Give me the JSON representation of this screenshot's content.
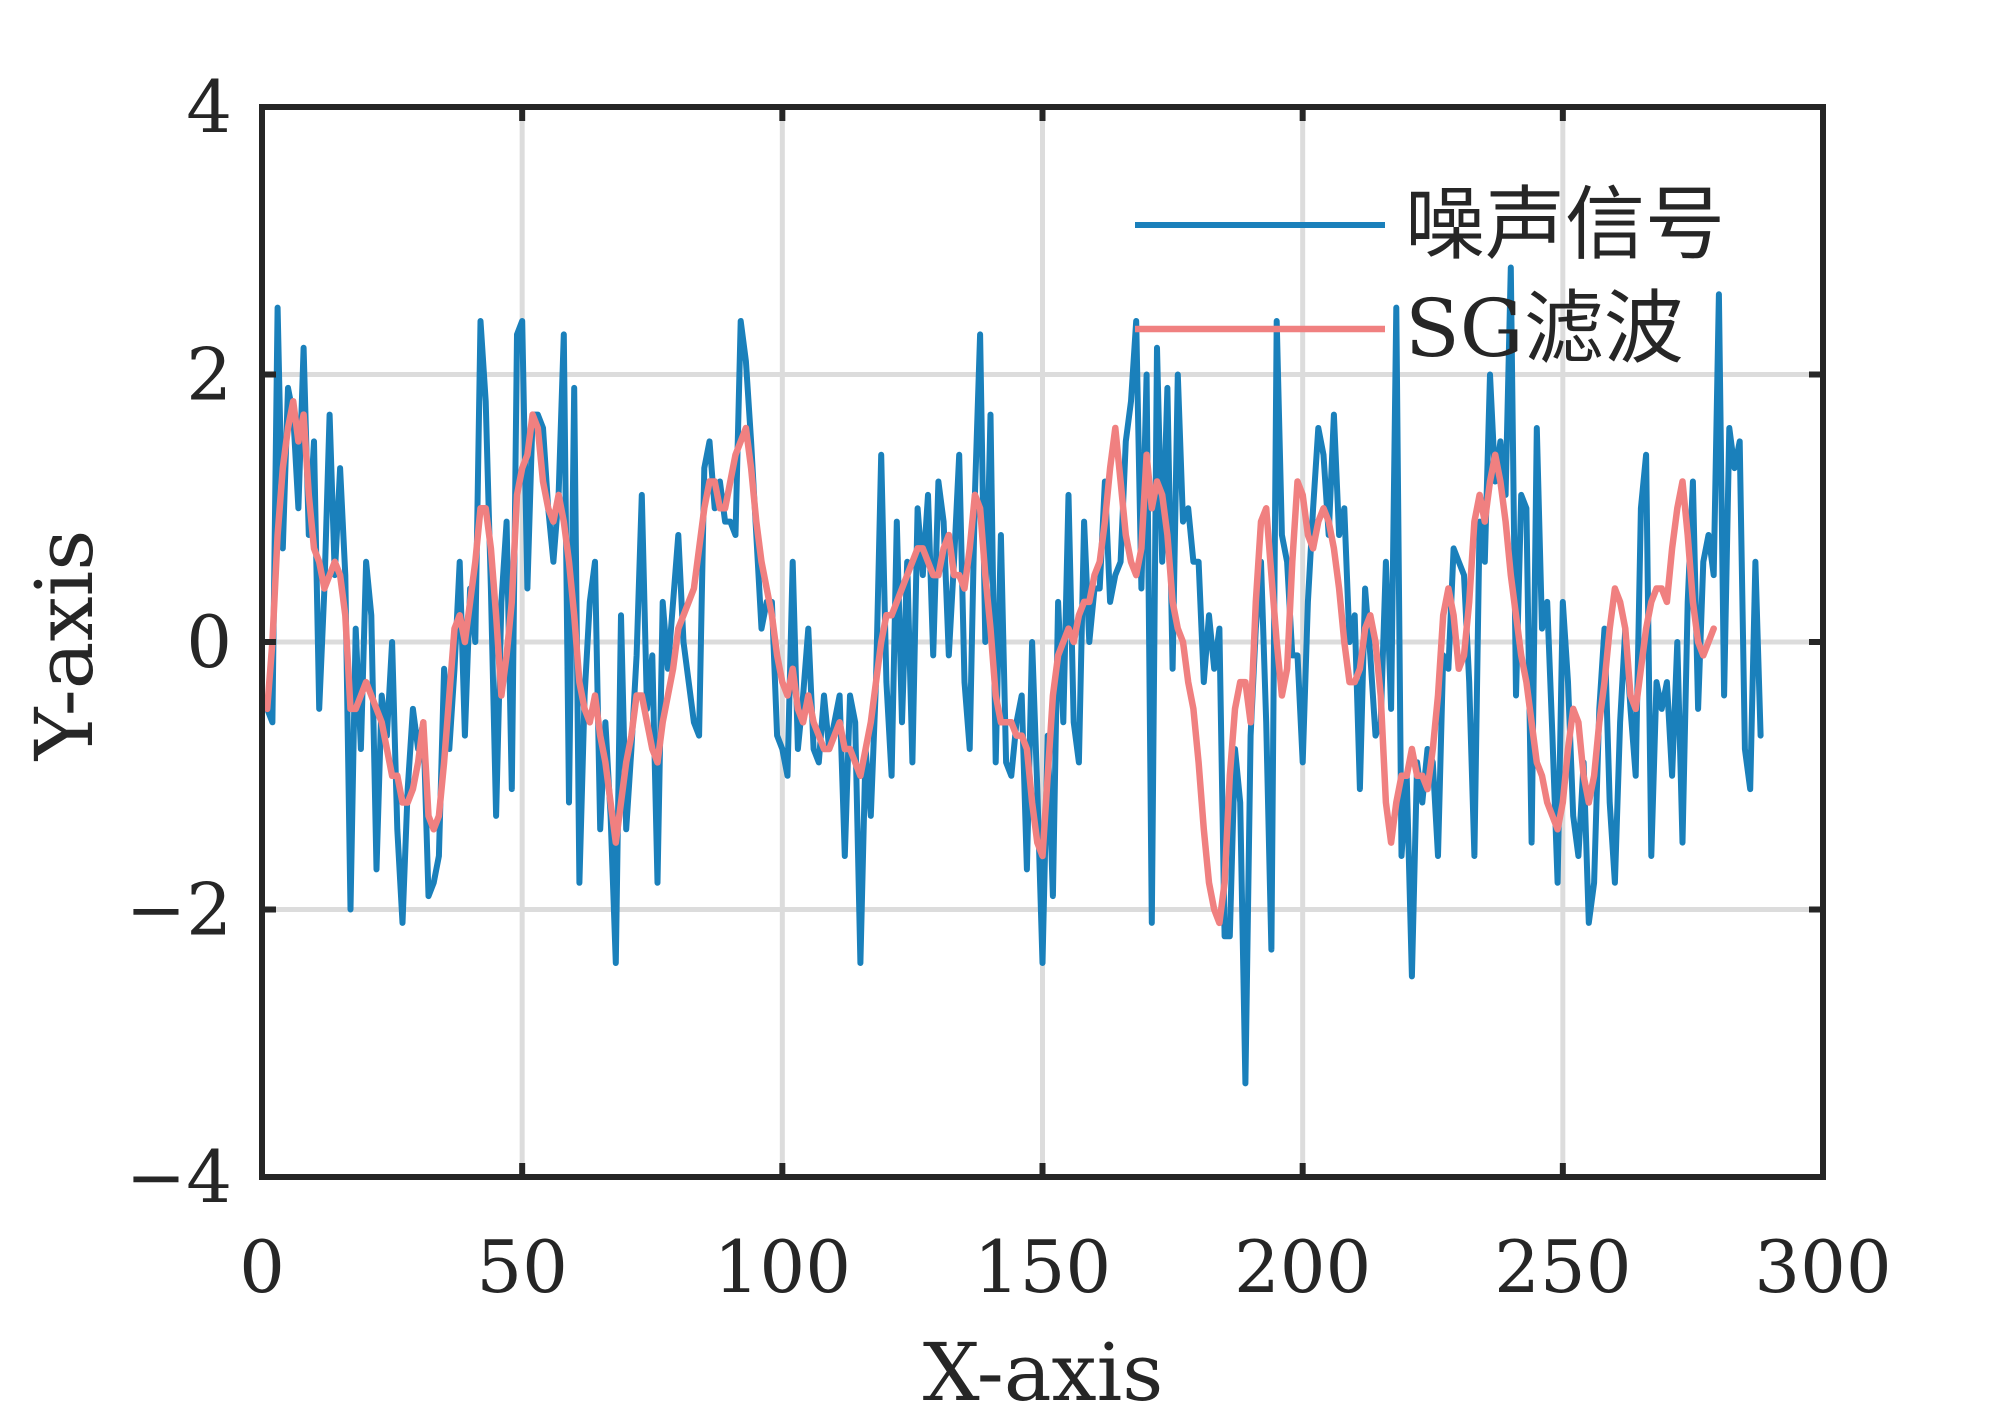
{
  "chart_data": {
    "type": "line",
    "xlabel": "X-axis",
    "ylabel": "Y-axis",
    "xlim": [
      0,
      300
    ],
    "ylim": [
      -4,
      4
    ],
    "xticks": [
      0,
      50,
      100,
      150,
      200,
      250,
      300
    ],
    "yticks": [
      -4,
      -2,
      0,
      2,
      4
    ],
    "xtick_labels": [
      "0",
      "50",
      "100",
      "150",
      "200",
      "250",
      "300"
    ],
    "ytick_labels": [
      "−4",
      "−2",
      "0",
      "2",
      "4"
    ],
    "grid": true,
    "legend_position": "top-right",
    "x_start": 1,
    "x_step": 1,
    "series": [
      {
        "name": "噪声信号",
        "color": "#1a80bb",
        "values": [
          -0.5,
          -0.6,
          2.5,
          0.7,
          1.9,
          1.7,
          1.0,
          2.2,
          0.8,
          1.5,
          -0.5,
          0.4,
          1.7,
          0.5,
          1.3,
          0.5,
          -2.0,
          0.1,
          -0.8,
          0.6,
          0.2,
          -1.7,
          -0.4,
          -0.7,
          0.0,
          -1.4,
          -2.1,
          -1.1,
          -0.5,
          -0.8,
          -0.6,
          -1.9,
          -1.8,
          -1.6,
          -0.2,
          -0.8,
          -0.2,
          0.6,
          -0.7,
          0.4,
          0.0,
          2.4,
          1.8,
          0.4,
          -1.3,
          0.3,
          0.9,
          -1.1,
          2.3,
          2.4,
          0.4,
          1.7,
          1.7,
          1.6,
          1.0,
          0.6,
          1.1,
          2.3,
          -1.2,
          1.9,
          -1.8,
          -0.4,
          0.3,
          0.6,
          -1.4,
          -0.6,
          -1.3,
          -2.4,
          0.2,
          -1.4,
          -0.8,
          -0.1,
          1.1,
          -0.5,
          -0.1,
          -1.8,
          0.3,
          -0.2,
          0.3,
          0.8,
          0.0,
          -0.3,
          -0.6,
          -0.7,
          1.3,
          1.5,
          1.0,
          1.2,
          0.9,
          0.9,
          0.8,
          2.4,
          2.1,
          1.5,
          0.8,
          0.1,
          0.3,
          0.3,
          -0.7,
          -0.8,
          -1.0,
          0.6,
          -0.8,
          -0.4,
          0.1,
          -0.8,
          -0.9,
          -0.4,
          -0.8,
          -0.6,
          -0.4,
          -1.6,
          -0.4,
          -0.6,
          -2.4,
          -0.8,
          -1.3,
          -0.3,
          1.4,
          -0.3,
          -1.0,
          0.9,
          -0.6,
          0.6,
          -0.9,
          1.0,
          0.5,
          1.1,
          -0.1,
          1.2,
          0.9,
          -0.1,
          0.6,
          1.4,
          -0.3,
          -0.8,
          1.1,
          2.3,
          0.0,
          1.7,
          -0.9,
          0.8,
          -0.9,
          -1.0,
          -0.6,
          -0.4,
          -1.7,
          0.0,
          -1.1,
          -2.4,
          -0.7,
          -1.9,
          0.3,
          -0.6,
          1.1,
          -0.6,
          -0.9,
          0.9,
          0.0,
          0.4,
          0.4,
          1.2,
          0.3,
          0.5,
          0.6,
          1.5,
          1.8,
          2.4,
          0.4,
          2.0,
          -2.1,
          2.2,
          0.6,
          1.9,
          -0.2,
          2.0,
          0.9,
          1.0,
          0.6,
          0.6,
          -0.3,
          0.2,
          -0.2,
          0.1,
          -2.2,
          -2.2,
          -0.8,
          -1.2,
          -3.3,
          -0.7,
          0.1,
          0.6,
          -0.6,
          -2.3,
          2.4,
          0.8,
          0.6,
          -0.1,
          -0.1,
          -0.9,
          0.3,
          1.0,
          1.6,
          1.4,
          0.8,
          1.7,
          0.8,
          1.0,
          0.0,
          0.2,
          -1.1,
          0.4,
          -0.1,
          -0.7,
          -0.6,
          0.6,
          -0.5,
          2.5,
          -1.6,
          -1.0,
          -2.5,
          -0.9,
          -1.2,
          -0.8,
          -0.9,
          -1.6,
          -0.1,
          -0.2,
          0.7,
          0.6,
          0.5,
          -0.3,
          -1.6,
          0.9,
          0.6,
          2.0,
          1.2,
          1.5,
          1.1,
          2.8,
          -0.4,
          1.1,
          1.0,
          -1.5,
          1.6,
          0.1,
          0.3,
          -0.7,
          -1.8,
          0.3,
          -0.3,
          -1.3,
          -1.6,
          -0.9,
          -2.1,
          -1.8,
          -0.5,
          0.1,
          -1.2,
          -1.8,
          -0.6,
          0.1,
          -0.5,
          -1.0,
          1.0,
          1.4,
          -1.6,
          -0.3,
          -0.5,
          -0.3,
          -1.0,
          0.0,
          -1.5,
          0.3,
          1.2,
          -0.5,
          0.6,
          0.8,
          0.5,
          2.6,
          -0.4,
          1.6,
          1.3,
          1.5,
          -0.8,
          -1.1,
          0.6,
          -0.7
        ]
      },
      {
        "name": "SG滤波",
        "color": "#f08080",
        "values": [
          -0.5,
          0.0,
          0.8,
          1.3,
          1.6,
          1.8,
          1.5,
          1.7,
          1.1,
          0.7,
          0.6,
          0.4,
          0.5,
          0.6,
          0.5,
          0.2,
          -0.5,
          -0.5,
          -0.4,
          -0.3,
          -0.4,
          -0.5,
          -0.6,
          -0.8,
          -1.0,
          -1.0,
          -1.2,
          -1.2,
          -1.1,
          -0.9,
          -0.6,
          -1.3,
          -1.4,
          -1.3,
          -0.9,
          -0.4,
          0.1,
          0.2,
          0.0,
          0.3,
          0.6,
          1.0,
          1.0,
          0.7,
          0.2,
          -0.4,
          -0.1,
          0.3,
          1.1,
          1.3,
          1.4,
          1.7,
          1.6,
          1.2,
          1.0,
          0.9,
          1.1,
          0.9,
          0.6,
          0.2,
          -0.3,
          -0.5,
          -0.6,
          -0.4,
          -0.7,
          -0.9,
          -1.2,
          -1.5,
          -1.2,
          -0.9,
          -0.7,
          -0.4,
          -0.4,
          -0.6,
          -0.8,
          -0.9,
          -0.6,
          -0.4,
          -0.2,
          0.1,
          0.2,
          0.3,
          0.4,
          0.7,
          1.0,
          1.2,
          1.2,
          1.0,
          1.0,
          1.2,
          1.4,
          1.5,
          1.6,
          1.3,
          0.9,
          0.6,
          0.4,
          0.2,
          -0.1,
          -0.3,
          -0.4,
          -0.2,
          -0.5,
          -0.6,
          -0.4,
          -0.6,
          -0.7,
          -0.8,
          -0.8,
          -0.7,
          -0.6,
          -0.8,
          -0.8,
          -0.9,
          -1.0,
          -0.8,
          -0.6,
          -0.3,
          0.0,
          0.2,
          0.2,
          0.3,
          0.4,
          0.5,
          0.6,
          0.7,
          0.7,
          0.6,
          0.5,
          0.5,
          0.7,
          0.8,
          0.5,
          0.5,
          0.4,
          0.7,
          1.1,
          1.0,
          0.5,
          0.1,
          -0.4,
          -0.6,
          -0.6,
          -0.6,
          -0.7,
          -0.7,
          -0.8,
          -1.2,
          -1.5,
          -1.6,
          -1.0,
          -0.4,
          -0.1,
          0.0,
          0.1,
          0.0,
          0.2,
          0.3,
          0.3,
          0.5,
          0.6,
          0.9,
          1.3,
          1.6,
          1.2,
          0.8,
          0.6,
          0.5,
          0.7,
          1.4,
          1.0,
          1.2,
          1.1,
          0.8,
          0.3,
          0.1,
          0.0,
          -0.3,
          -0.5,
          -0.9,
          -1.4,
          -1.8,
          -2.0,
          -2.1,
          -1.8,
          -1.0,
          -0.5,
          -0.3,
          -0.3,
          -0.6,
          0.3,
          0.9,
          1.0,
          0.5,
          0.0,
          -0.4,
          -0.2,
          0.6,
          1.2,
          1.1,
          0.8,
          0.7,
          0.9,
          1.0,
          0.9,
          0.7,
          0.4,
          0.0,
          -0.3,
          -0.3,
          -0.2,
          0.1,
          0.2,
          0.0,
          -0.4,
          -1.2,
          -1.5,
          -1.2,
          -1.0,
          -1.0,
          -0.8,
          -1.0,
          -1.0,
          -1.1,
          -0.8,
          -0.4,
          0.2,
          0.4,
          0.2,
          -0.2,
          -0.1,
          0.3,
          0.9,
          1.1,
          0.9,
          1.2,
          1.4,
          1.2,
          0.9,
          0.5,
          0.2,
          -0.1,
          -0.3,
          -0.6,
          -0.9,
          -1.0,
          -1.2,
          -1.3,
          -1.4,
          -1.2,
          -0.8,
          -0.5,
          -0.6,
          -1.0,
          -1.2,
          -1.0,
          -0.6,
          -0.3,
          0.1,
          0.4,
          0.3,
          0.1,
          -0.4,
          -0.5,
          -0.2,
          0.1,
          0.3,
          0.4,
          0.4,
          0.3,
          0.7,
          1.0,
          1.2,
          0.8,
          0.3,
          0.0,
          -0.1,
          0.0,
          0.1
        ]
      }
    ]
  }
}
